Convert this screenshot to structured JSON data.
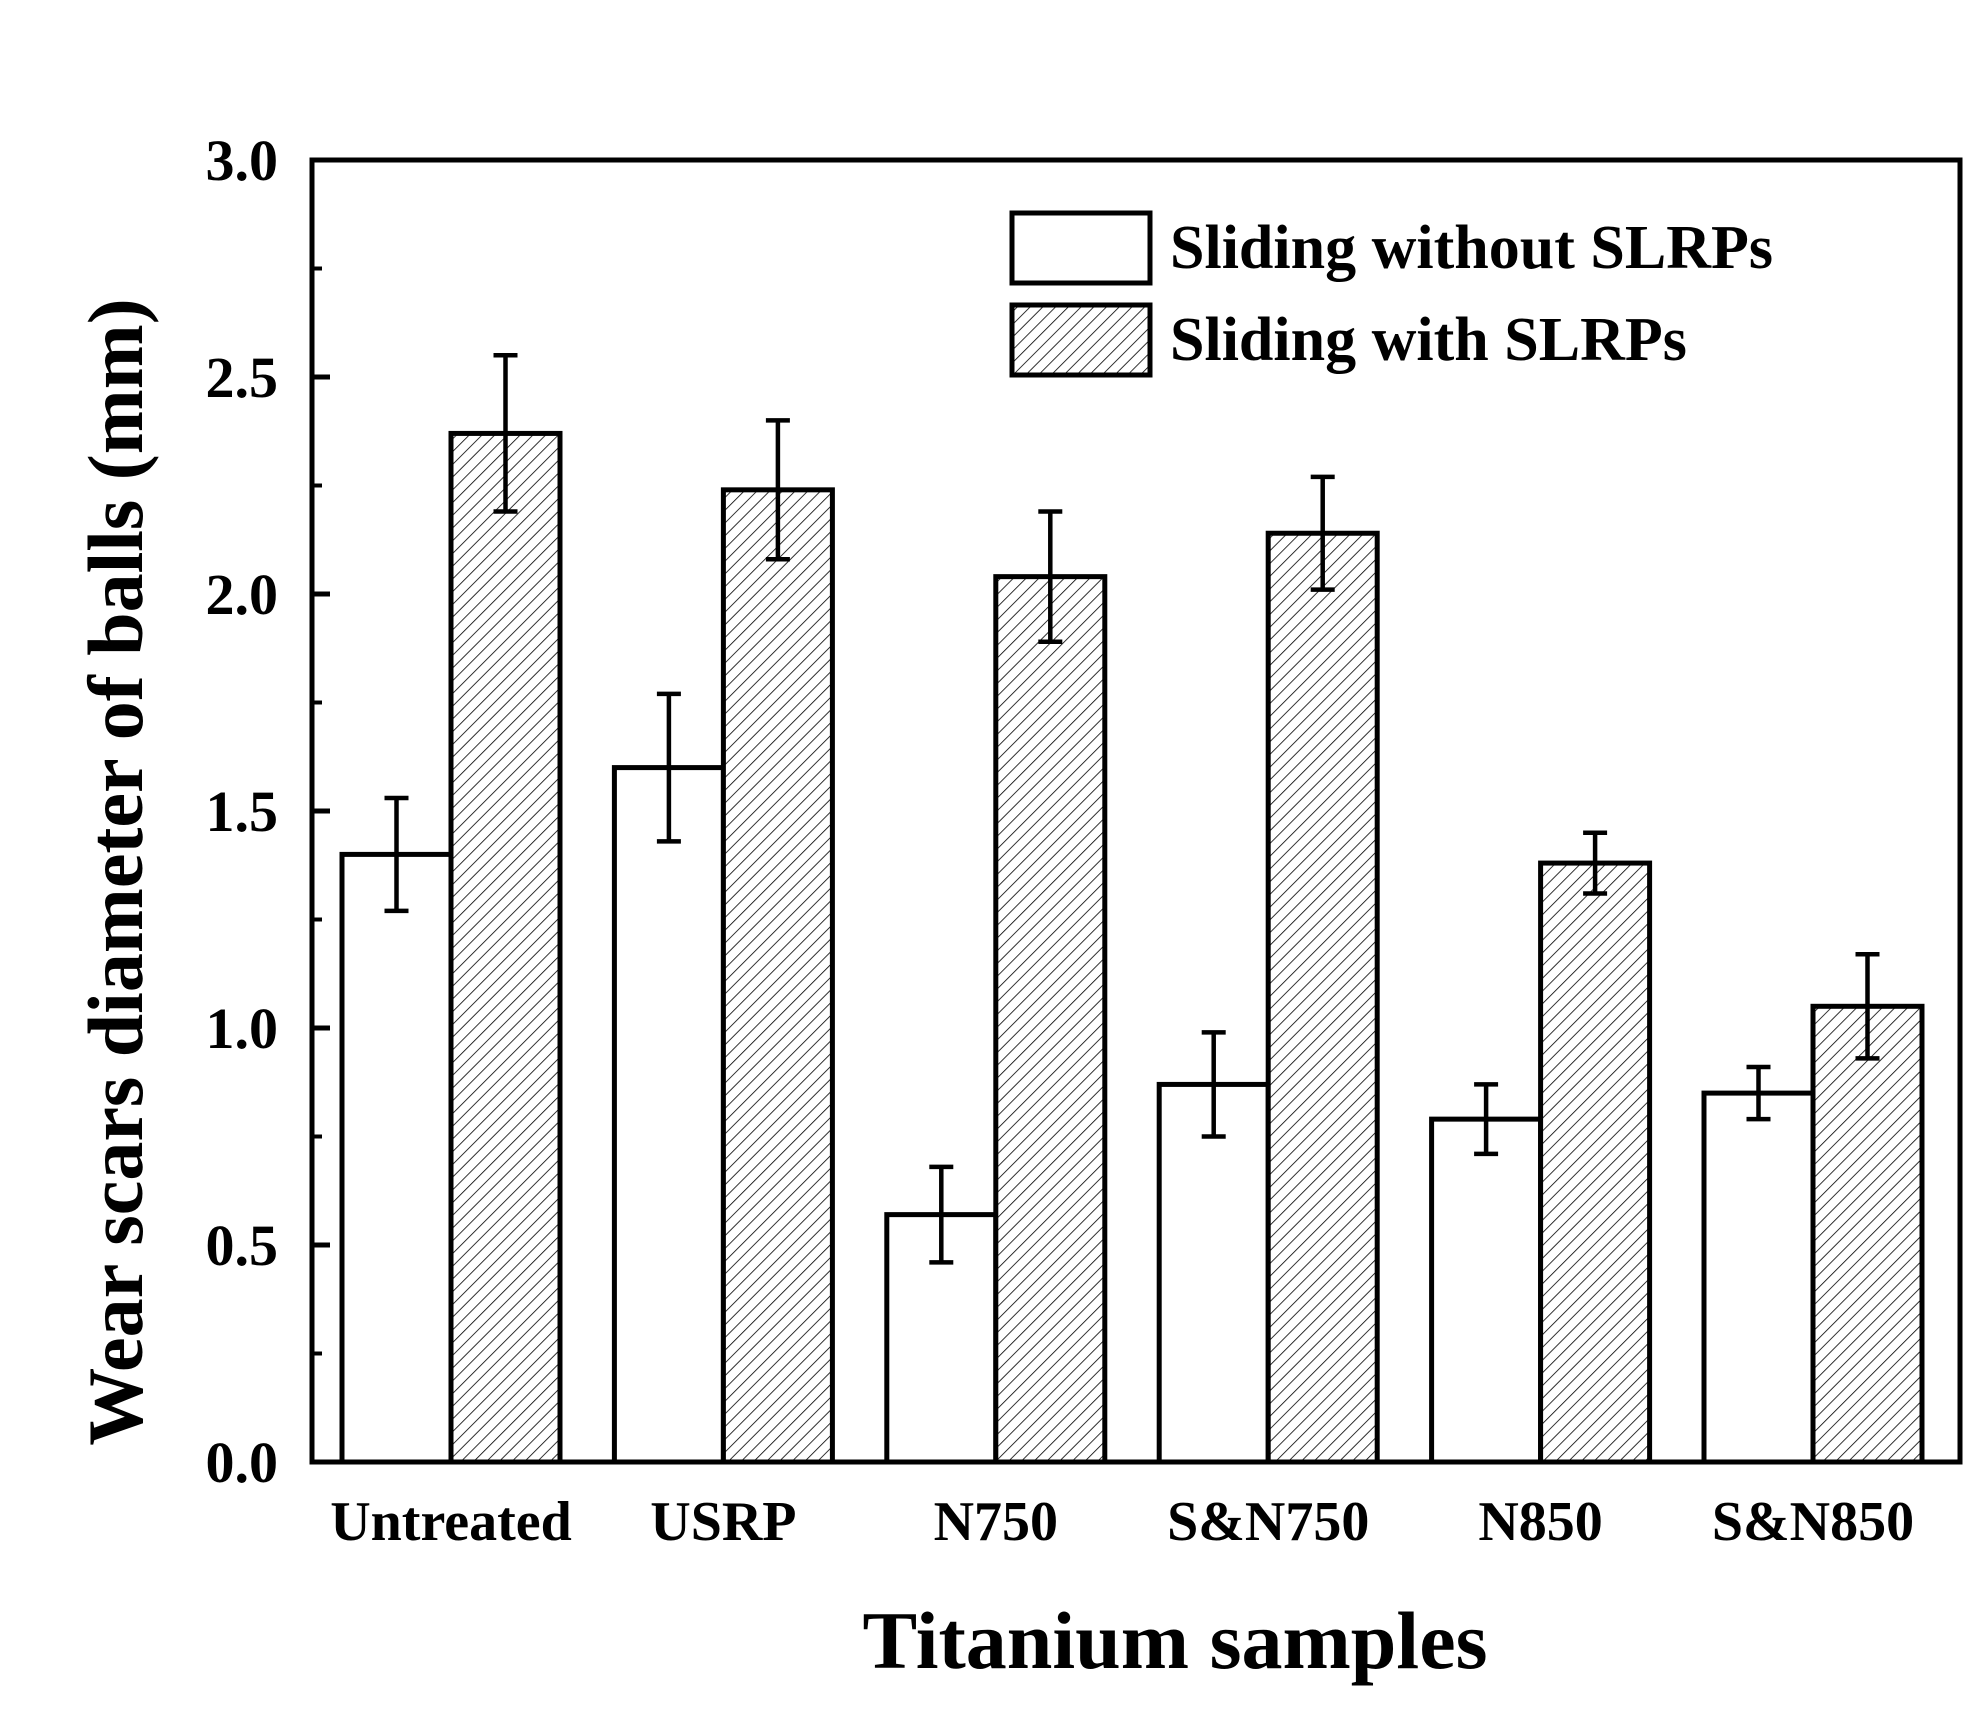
{
  "chart_data": {
    "type": "bar",
    "title": "",
    "xlabel": "Titanium samples",
    "ylabel": "Wear scars diameter of balls (mm)",
    "ylim": [
      0,
      3.0
    ],
    "y_ticks": [
      "0.0",
      "0.5",
      "1.0",
      "1.5",
      "2.0",
      "2.5",
      "3.0"
    ],
    "categories": [
      "Untreated",
      "USRP",
      "N750",
      "S&N750",
      "N850",
      "S&N850"
    ],
    "legend_position": "top-right",
    "series": [
      {
        "name": "Sliding without SLRPs",
        "pattern": "plain",
        "values": [
          1.4,
          1.6,
          0.57,
          0.87,
          0.79,
          0.85
        ],
        "errors": [
          0.13,
          0.17,
          0.11,
          0.12,
          0.08,
          0.06
        ]
      },
      {
        "name": "Sliding with SLRPs",
        "pattern": "hatched",
        "values": [
          2.37,
          2.24,
          2.04,
          2.14,
          1.38,
          1.05
        ],
        "errors": [
          0.18,
          0.16,
          0.15,
          0.13,
          0.07,
          0.12
        ]
      }
    ],
    "colors": {
      "axis": "#000000",
      "bar_fill": "#ffffff",
      "hatch": "#000000"
    }
  }
}
